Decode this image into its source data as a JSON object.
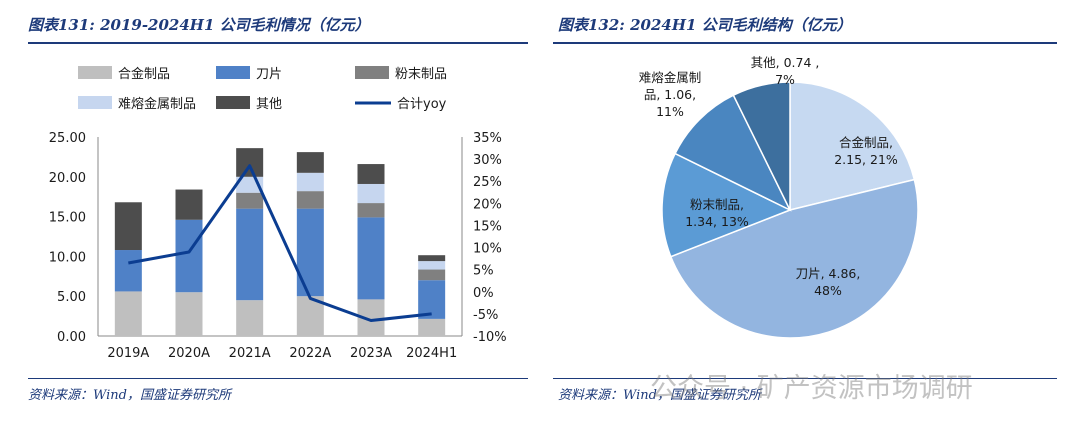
{
  "left_panel": {
    "title": "图表131: 2019-2024H1 公司毛利情况（亿元）",
    "source": "资料来源：Wind，国盛证券研究所"
  },
  "right_panel": {
    "title": "图表132: 2024H1 公司毛利结构（亿元）",
    "source": "资料来源：Wind，国盛证券研究所"
  },
  "watermark": "公众号 · 矿产资源市场调研",
  "colors": {
    "hejin": "#bfbfbf",
    "daopian": "#4f81c7",
    "fenmo": "#808080",
    "nanrong": "#c6d6ef",
    "qita": "#4d4d4d",
    "yoy": "#0b3d91",
    "title": "#1d3a7a"
  },
  "chart_data": [
    {
      "type": "bar",
      "stacked": true,
      "title": "2019-2024H1 公司毛利情况（亿元）",
      "categories": [
        "2019A",
        "2020A",
        "2021A",
        "2022A",
        "2023A",
        "2024H1"
      ],
      "series": [
        {
          "name": "合金制品",
          "key": "hejin",
          "values": [
            5.6,
            5.5,
            4.5,
            5.0,
            4.6,
            2.15
          ]
        },
        {
          "name": "刀片",
          "key": "daopian",
          "values": [
            5.2,
            9.1,
            11.5,
            11.0,
            10.3,
            4.86
          ]
        },
        {
          "name": "粉末制品",
          "key": "fenmo",
          "values": [
            0.0,
            0.0,
            2.0,
            2.2,
            1.8,
            1.34
          ]
        },
        {
          "name": "难熔金属制品",
          "key": "nanrong",
          "values": [
            0.0,
            0.0,
            2.0,
            2.3,
            2.4,
            1.06
          ]
        },
        {
          "name": "其他",
          "key": "qita",
          "values": [
            6.0,
            3.8,
            3.6,
            2.6,
            2.5,
            0.74
          ]
        }
      ],
      "line_series": {
        "name": "合计yoy",
        "key": "yoy",
        "values": [
          6.5,
          9.0,
          28.5,
          -1.5,
          -6.5,
          -5.0
        ],
        "unit": "%"
      },
      "ylim": [
        0,
        25
      ],
      "yticks": [
        "0.00",
        "5.00",
        "10.00",
        "15.00",
        "20.00",
        "25.00"
      ],
      "y2lim": [
        -10,
        35
      ],
      "y2ticks": [
        "-10%",
        "-5%",
        "0%",
        "5%",
        "10%",
        "15%",
        "20%",
        "25%",
        "30%",
        "35%"
      ],
      "legend": [
        "合金制品",
        "刀片",
        "粉末制品",
        "难熔金属制品",
        "其他",
        "合计yoy"
      ]
    },
    {
      "type": "pie",
      "title": "2024H1 公司毛利结构（亿元）",
      "slices": [
        {
          "name": "合金制品",
          "key": "hejin",
          "value": 2.15,
          "pct": "21%",
          "label": [
            "合金制品,",
            "2.15, 21%"
          ],
          "color": "#c6d9f1"
        },
        {
          "name": "刀片",
          "key": "daopian",
          "value": 4.86,
          "pct": "48%",
          "label": [
            "刀片, 4.86,",
            "48%"
          ],
          "color": "#93b5e0"
        },
        {
          "name": "粉末制品",
          "key": "fenmo",
          "value": 1.34,
          "pct": "13%",
          "label": [
            "粉末制品,",
            "1.34, 13%"
          ],
          "color": "#5b9bd5"
        },
        {
          "name": "难熔金属制品",
          "key": "nanrong",
          "value": 1.06,
          "pct": "11%",
          "label": [
            "难熔金属制",
            "品, 1.06,",
            "11%"
          ],
          "color": "#4a86c0"
        },
        {
          "name": "其他",
          "key": "qita",
          "value": 0.74,
          "pct": "7%",
          "label": [
            "其他, 0.74 ,",
            "7%"
          ],
          "color": "#3d6f9e"
        }
      ]
    }
  ]
}
